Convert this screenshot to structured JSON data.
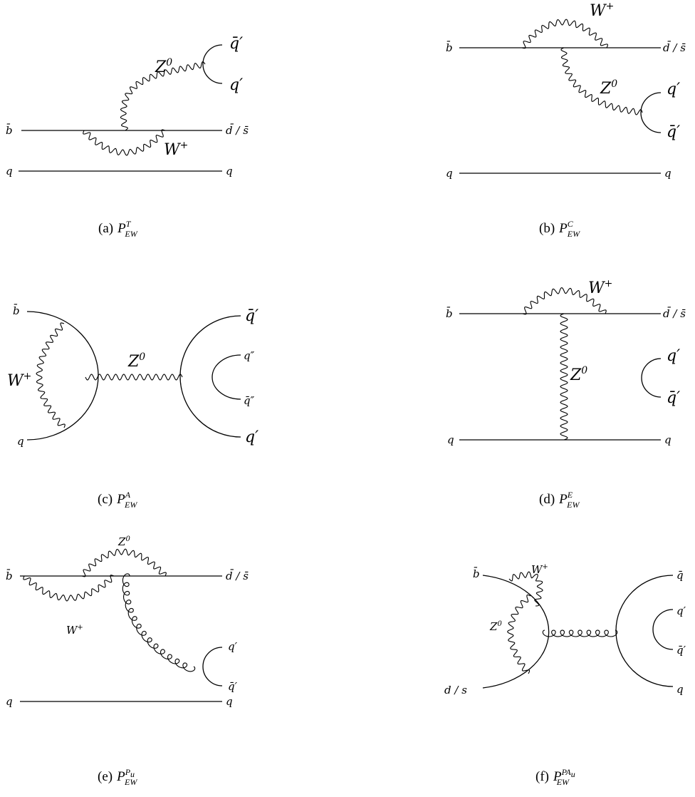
{
  "panels": [
    {
      "id": "a",
      "caption": {
        "tag": "(a)",
        "symbol": "P",
        "sup": "T",
        "sub": "EW"
      },
      "labels": {
        "b": "b̄",
        "out": "d̄ / s̄",
        "q_in": "q",
        "q_out": "q",
        "z": "Z",
        "z_sup": "0",
        "w": "W",
        "w_sup": "+",
        "qbar_p": "q̄′",
        "q_p": "q′"
      }
    },
    {
      "id": "b",
      "caption": {
        "tag": "(b)",
        "symbol": "P",
        "sup": "C",
        "sub": "EW"
      },
      "labels": {
        "b": "b̄",
        "out": "d̄ / s̄",
        "q_in": "q",
        "q_out": "q",
        "z": "Z",
        "z_sup": "0",
        "w": "W",
        "w_sup": "+",
        "q_p": "q′",
        "qbar_p": "q̄′"
      }
    },
    {
      "id": "c",
      "caption": {
        "tag": "(c)",
        "symbol": "P",
        "sup": "A",
        "sub": "EW"
      },
      "labels": {
        "b": "b̄",
        "q_in": "q",
        "w": "W",
        "w_sup": "+",
        "z": "Z",
        "z_sup": "0",
        "qbar_p": "q̄′",
        "q_pp": "q″",
        "qbar_pp": "q̄″",
        "q_p": "q′"
      }
    },
    {
      "id": "d",
      "caption": {
        "tag": "(d)",
        "symbol": "P",
        "sup": "E",
        "sub": "EW"
      },
      "labels": {
        "b": "b̄",
        "out": "d̄ / s̄",
        "q_in": "q",
        "q_out": "q",
        "w": "W",
        "w_sup": "+",
        "z": "Z",
        "z_sup": "0",
        "q_p": "q′",
        "qbar_p": "q̄′"
      }
    },
    {
      "id": "e",
      "caption": {
        "tag": "(e)",
        "symbol": "P",
        "sup": "P",
        "sup_sub": "u",
        "sub": "EW"
      },
      "labels": {
        "b": "b̄",
        "out": "d̄ / s̄",
        "q_in": "q",
        "q_out": "q",
        "z": "Z",
        "z_sup": "0",
        "w": "W",
        "w_sup": "+",
        "q_p": "q′",
        "qbar_p": "q̄′"
      }
    },
    {
      "id": "f",
      "caption": {
        "tag": "(f)",
        "symbol": "P",
        "sup": "PA",
        "sup_sub": "u",
        "sub": "EW"
      },
      "labels": {
        "b": "b̄",
        "ds": "d / s",
        "w": "W",
        "w_sup": "+",
        "z": "Z",
        "z_sup": "0",
        "qbar": "q̄",
        "q_p": "q′",
        "qbar_p": "q̄′",
        "q": "q"
      }
    }
  ]
}
